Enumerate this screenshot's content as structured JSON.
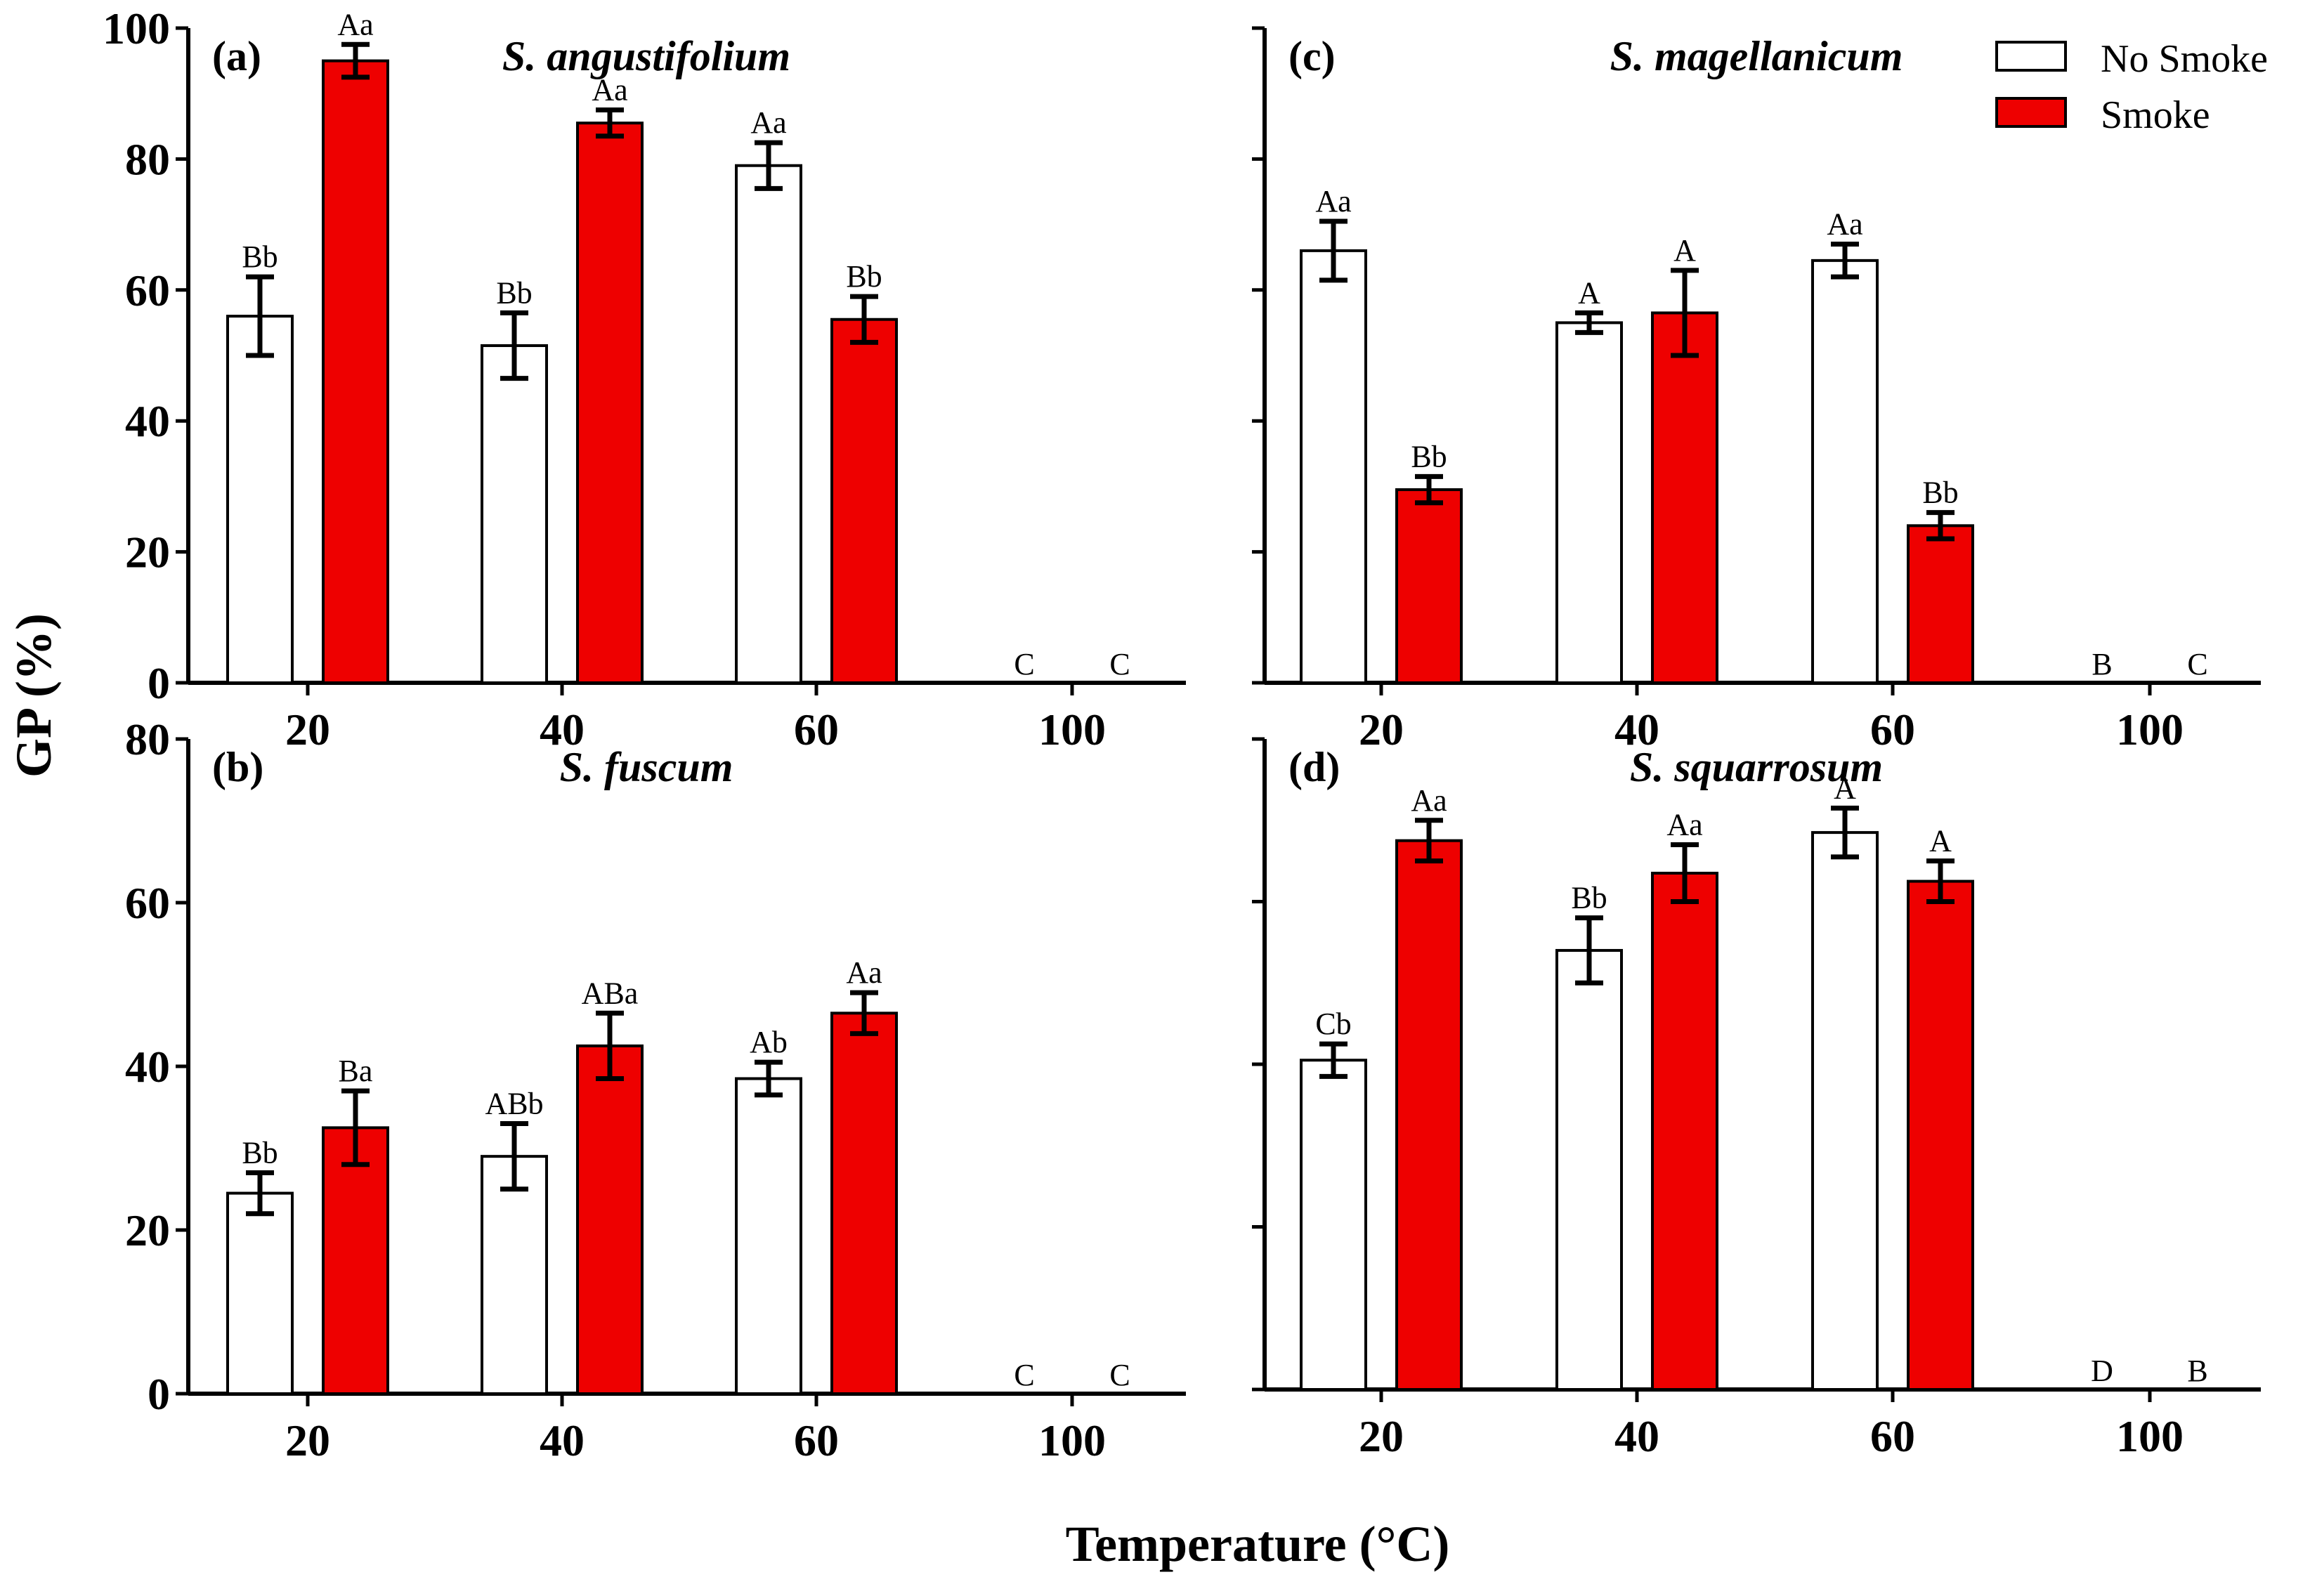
{
  "colors": {
    "no_smoke": "#ffffff",
    "smoke": "#ee0000",
    "axis": "#000000"
  },
  "figure": {
    "ylabel": "GP (%)",
    "xlabel": "Temperature (°C)"
  },
  "legend": [
    "No Smoke",
    "Smoke"
  ],
  "chart_data": [
    {
      "panel": "(a)",
      "title": "S. angustifolium",
      "type": "bar",
      "categories": [
        "20",
        "40",
        "60",
        "100"
      ],
      "ylim": [
        0,
        100
      ],
      "yticks": [
        0,
        20,
        40,
        60,
        80,
        100
      ],
      "show_tick_labels": true,
      "series": [
        {
          "name": "No Smoke",
          "values": [
            56,
            51.5,
            79,
            0
          ],
          "errors": [
            6,
            5,
            3.5,
            0
          ],
          "labels": [
            "Bb",
            "Bb",
            "Aa",
            "C"
          ]
        },
        {
          "name": "Smoke",
          "values": [
            95,
            85.5,
            55.5,
            0
          ],
          "errors": [
            2.5,
            2,
            3.5,
            0
          ],
          "labels": [
            "Aa",
            "Aa",
            "Bb",
            "C"
          ]
        }
      ]
    },
    {
      "panel": "(b)",
      "title": "S. fuscum",
      "type": "bar",
      "categories": [
        "20",
        "40",
        "60",
        "100"
      ],
      "ylim": [
        0,
        80
      ],
      "yticks": [
        0,
        20,
        40,
        60,
        80
      ],
      "show_tick_labels": true,
      "series": [
        {
          "name": "No Smoke",
          "values": [
            24.5,
            29,
            38.5,
            0
          ],
          "errors": [
            2.5,
            4,
            2,
            0
          ],
          "labels": [
            "Bb",
            "ABb",
            "Ab",
            "C"
          ]
        },
        {
          "name": "Smoke",
          "values": [
            32.5,
            42.5,
            46.5,
            0
          ],
          "errors": [
            4.5,
            4,
            2.5,
            0
          ],
          "labels": [
            "Ba",
            "ABa",
            "Aa",
            "C"
          ]
        }
      ]
    },
    {
      "panel": "(c)",
      "title": "S. magellanicum",
      "type": "bar",
      "categories": [
        "20",
        "40",
        "60",
        "100"
      ],
      "ylim": [
        0,
        100
      ],
      "yticks": [
        0,
        20,
        40,
        60,
        80,
        100
      ],
      "show_tick_labels": false,
      "series": [
        {
          "name": "No Smoke",
          "values": [
            66,
            55,
            64.5,
            0
          ],
          "errors": [
            4.5,
            1.5,
            2.5,
            0
          ],
          "labels": [
            "Aa",
            "A",
            "Aa",
            "B"
          ]
        },
        {
          "name": "Smoke",
          "values": [
            29.5,
            56.5,
            24,
            0
          ],
          "errors": [
            2,
            6.5,
            2,
            0
          ],
          "labels": [
            "Bb",
            "A",
            "Bb",
            "C"
          ]
        }
      ]
    },
    {
      "panel": "(d)",
      "title": "S. squarrosum",
      "type": "bar",
      "categories": [
        "20",
        "40",
        "60",
        "100"
      ],
      "ylim": [
        0,
        80
      ],
      "yticks": [
        0,
        20,
        40,
        60,
        80
      ],
      "show_tick_labels": false,
      "series": [
        {
          "name": "No Smoke",
          "values": [
            40.5,
            54,
            68.5,
            0
          ],
          "errors": [
            2,
            4,
            3,
            0
          ],
          "labels": [
            "Cb",
            "Bb",
            "A",
            "D"
          ]
        },
        {
          "name": "Smoke",
          "values": [
            67.5,
            63.5,
            62.5,
            0
          ],
          "errors": [
            2.5,
            3.5,
            2.5,
            0
          ],
          "labels": [
            "Aa",
            "Aa",
            "A",
            "B"
          ]
        }
      ]
    }
  ]
}
